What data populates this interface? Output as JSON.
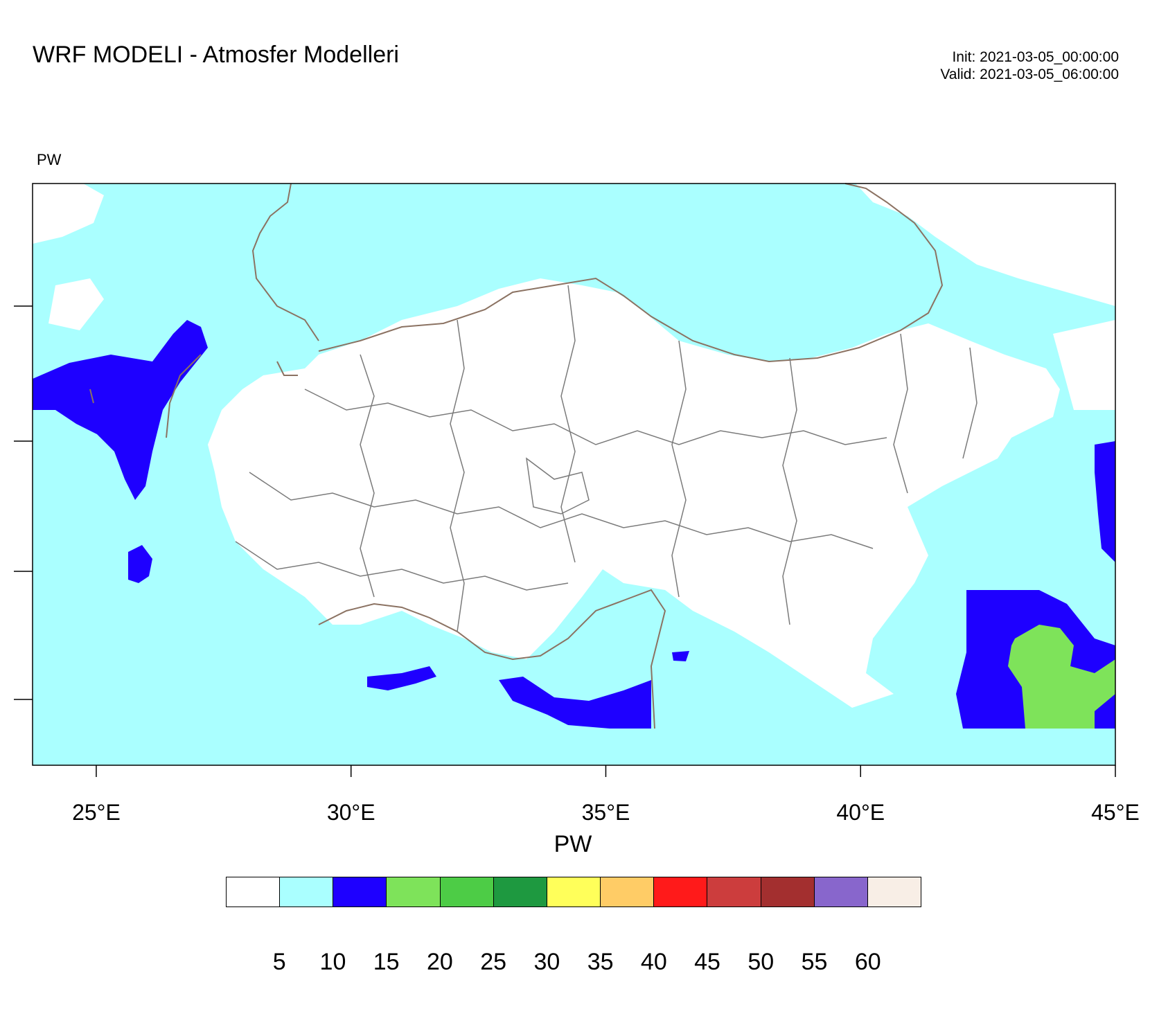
{
  "header": {
    "title": "WRF MODELI - Atmosfer Modelleri",
    "init": "Init: 2021-03-05_00:00:00",
    "valid": "Valid: 2021-03-05_06:00:00",
    "variable_label": "PW"
  },
  "map": {
    "lon_range": [
      23.75,
      45.0
    ],
    "lon_ticks": [
      "25°E",
      "30°E",
      "35°E",
      "40°E",
      "45°E"
    ],
    "lon_tick_values": [
      25,
      30,
      35,
      40,
      45
    ],
    "colors": {
      "sea_low": "#aaffff",
      "land": "#ffffff",
      "band_10_15": "#1e00ff",
      "band_15_20": "#7ee35a",
      "coast": "#8b7262",
      "border": "#7a7a7a"
    }
  },
  "colorbar": {
    "title": "PW",
    "ticks": [
      "5",
      "10",
      "15",
      "20",
      "25",
      "30",
      "35",
      "40",
      "45",
      "50",
      "55",
      "60"
    ],
    "colors": [
      "#ffffff",
      "#aaffff",
      "#1e00ff",
      "#7ee35a",
      "#4dcc46",
      "#1e9940",
      "#ffff5a",
      "#ffcc66",
      "#ff1a1a",
      "#cc3d3d",
      "#a32f2f",
      "#8866cc",
      "#f8eee6"
    ]
  }
}
